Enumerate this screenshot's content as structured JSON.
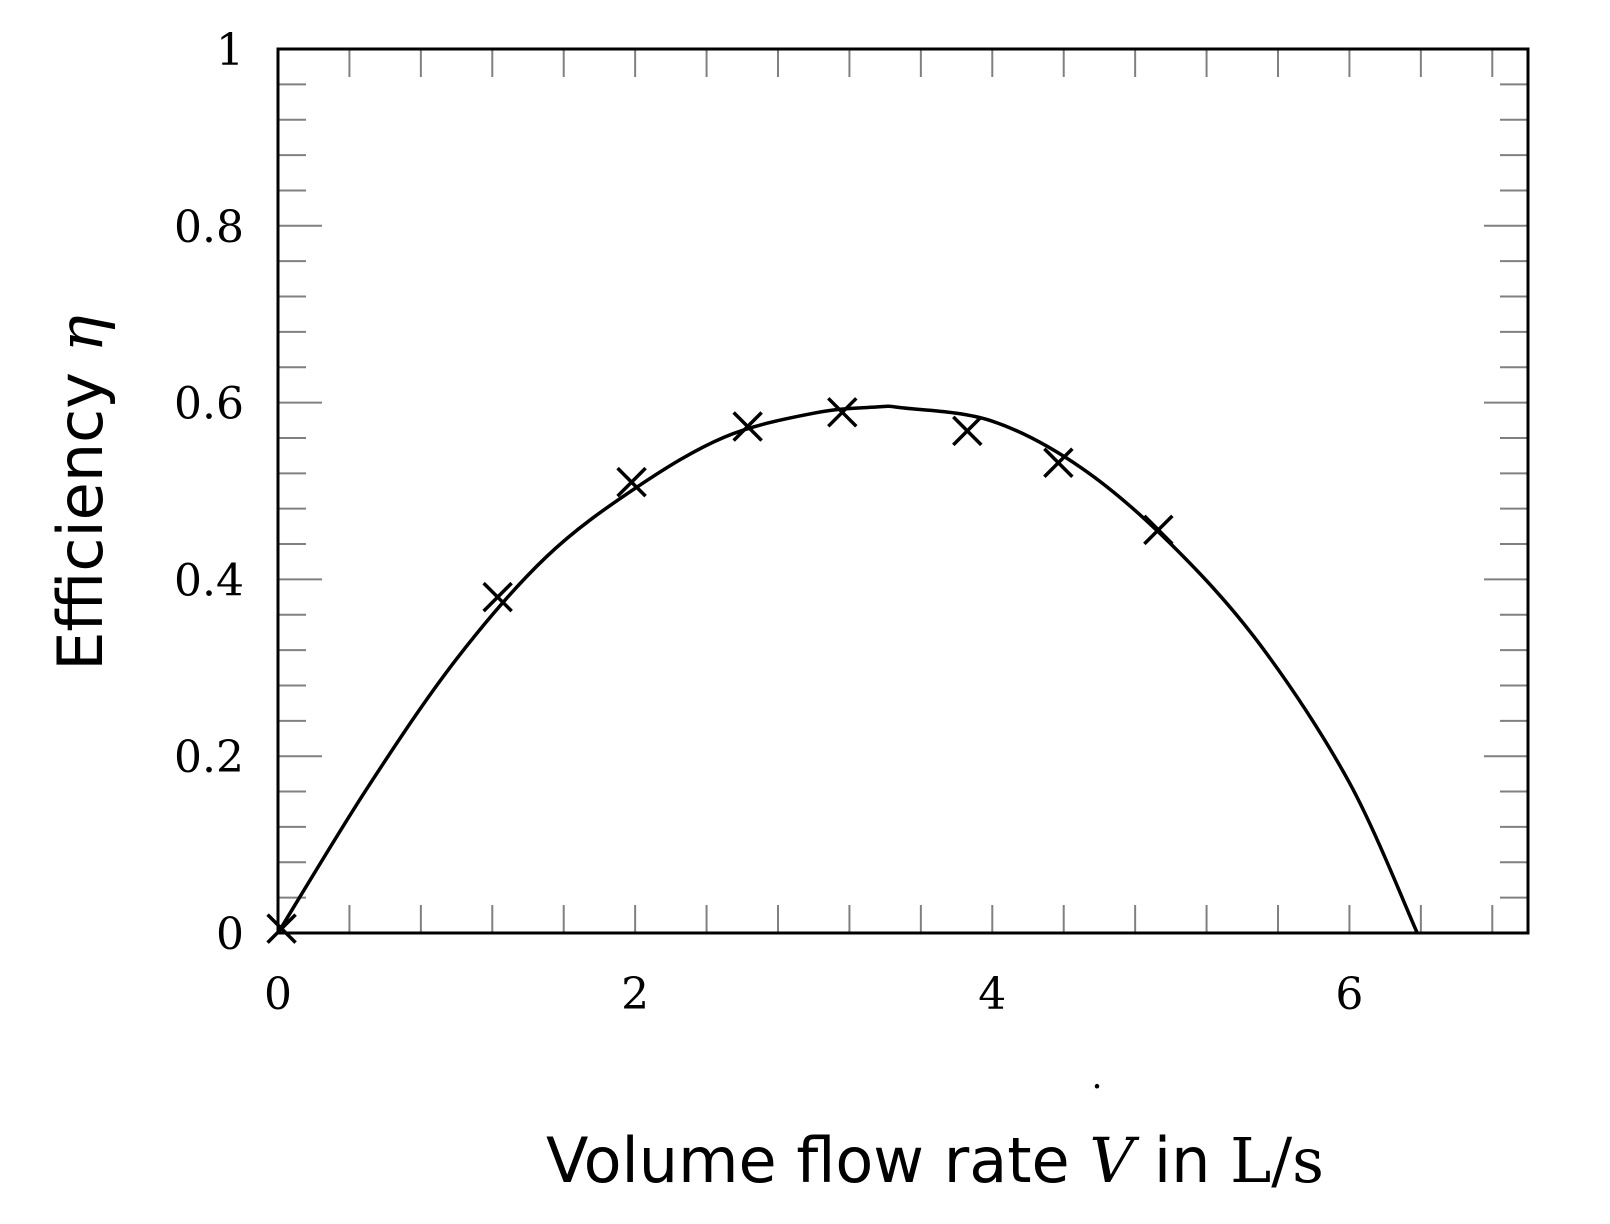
{
  "chart_data": {
    "type": "scatter",
    "title": "",
    "xlabel": {
      "prefix": "Volume flow rate ",
      "symbol": "V",
      "middle": " in ",
      "unit": "L/s"
    },
    "ylabel": {
      "prefix": "Efficiency ",
      "symbol": "η"
    },
    "xlim": [
      0,
      7
    ],
    "ylim": [
      0,
      1
    ],
    "xticks": [
      0,
      2,
      4,
      6
    ],
    "yticks": [
      0,
      0.2,
      0.4,
      0.6,
      0.8,
      1
    ],
    "xtick_labels": [
      "0",
      "2",
      "4",
      "6"
    ],
    "ytick_labels": [
      "0",
      "0.2",
      "0.4",
      "0.6",
      "0.8",
      "1"
    ],
    "x_minor_step": 0.4,
    "y_minor_step": 0.04,
    "grid": false,
    "series": [
      {
        "kind": "markers",
        "marker": "x",
        "x": [
          0.02,
          1.23,
          1.98,
          2.63,
          3.16,
          3.86,
          4.37,
          4.93
        ],
        "y": [
          0.005,
          0.38,
          0.51,
          0.573,
          0.589,
          0.568,
          0.532,
          0.456
        ]
      },
      {
        "kind": "fit-curve",
        "x": [
          0,
          0.5,
          1,
          1.5,
          2,
          2.5,
          3,
          3.35,
          3.5,
          4,
          4.5,
          5,
          5.5,
          6,
          6.38
        ],
        "y": [
          0,
          0.164,
          0.31,
          0.425,
          0.503,
          0.561,
          0.588,
          0.595,
          0.594,
          0.579,
          0.526,
          0.44,
          0.326,
          0.17,
          0
        ]
      }
    ],
    "colors": {
      "line": "#000000",
      "marker": "#000000",
      "tick": "#808080"
    }
  }
}
